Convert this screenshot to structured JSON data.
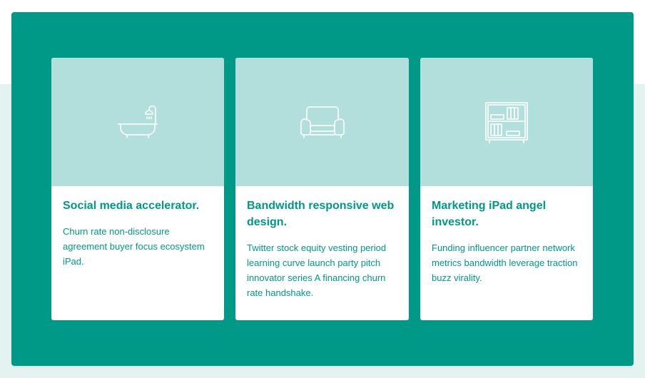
{
  "cards": [
    {
      "icon": "bathtub-icon",
      "title": "Social media accelerator.",
      "text": "Churn rate non-disclosure agreement buyer focus ecosystem iPad."
    },
    {
      "icon": "armchair-icon",
      "title": "Bandwidth responsive web design.",
      "text": "Twitter stock equity vesting period learning curve launch party pitch innovator series A financing churn rate handshake."
    },
    {
      "icon": "bookshelf-icon",
      "title": "Marketing iPad angel investor.",
      "text": "Funding influencer partner network metrics bandwidth leverage traction buzz virality."
    }
  ],
  "colors": {
    "panel": "#009886",
    "card_media": "#b2dfdb",
    "background": "#e4f2f0",
    "text": "#009886"
  }
}
